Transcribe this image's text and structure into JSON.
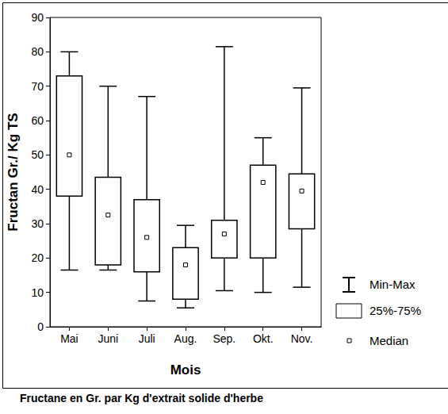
{
  "chart_data": {
    "type": "boxplot",
    "title": "Fructane en Gr. par Kg d'extrait solide d'herbe",
    "x_label": "Mois",
    "y_label": "Fructan Gr./ Kg TS",
    "categories": [
      "Mai",
      "Juni",
      "Juli",
      "Aug.",
      "Sep.",
      "Okt.",
      "Nov."
    ],
    "min": [
      16.5,
      16.5,
      7.5,
      5.5,
      10.5,
      10,
      11.5
    ],
    "q1": [
      38,
      18,
      16,
      8,
      20,
      20,
      28.5
    ],
    "median": [
      50,
      32.5,
      26,
      18,
      27,
      42,
      39.5
    ],
    "q3": [
      73,
      43.5,
      37,
      23,
      31,
      47,
      44.5
    ],
    "max": [
      80,
      70,
      67,
      29.5,
      81.5,
      55,
      69.5
    ],
    "stat_labels": {
      "whisker": "Min-Max",
      "box": "25%-75%",
      "median": "Median"
    },
    "ylim": [
      0,
      90
    ],
    "yticks": [
      0,
      10,
      20,
      30,
      40,
      50,
      60,
      70,
      80,
      90
    ],
    "color": "#000000",
    "grid": false,
    "legend": "right"
  }
}
